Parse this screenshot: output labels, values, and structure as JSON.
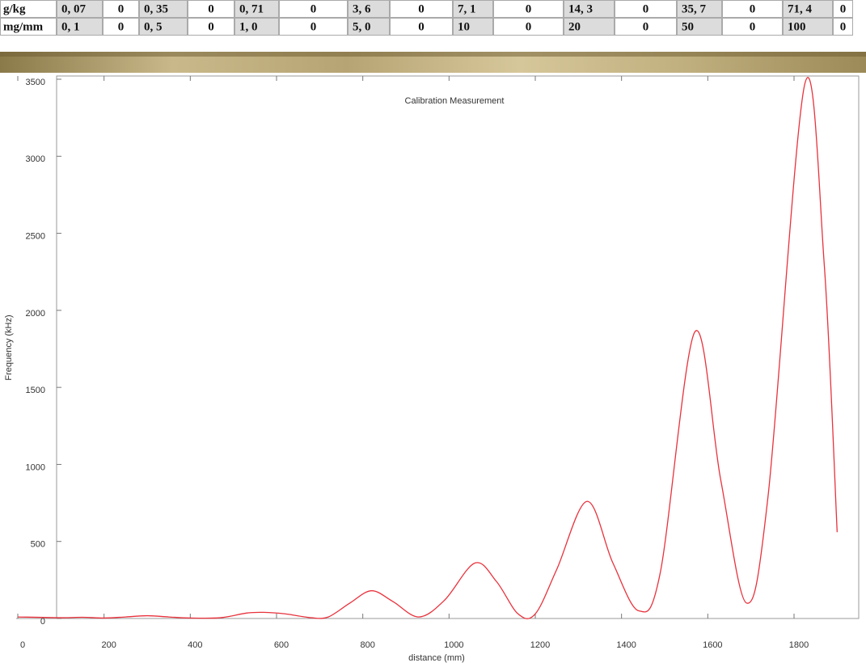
{
  "table": {
    "rows": [
      [
        "g/kg",
        "0, 07",
        "0",
        "0, 35",
        "0",
        "0, 71",
        "0",
        "3, 6",
        "0",
        "7, 1",
        "0",
        "14, 3",
        "0",
        "35, 7",
        "0",
        "71, 4",
        "0"
      ],
      [
        "mg/mm",
        "0, 1",
        "0",
        "0, 5",
        "0",
        "1, 0",
        "0",
        "5, 0",
        "0",
        "10",
        "0",
        "20",
        "0",
        "50",
        "0",
        "100",
        "0"
      ]
    ]
  },
  "chart_data": {
    "type": "line",
    "title": "Calibration Measurement",
    "x_label": "distance (mm)",
    "y_label": "Frequency (kHz)",
    "x": [
      0,
      100,
      150,
      200,
      250,
      300,
      350,
      400,
      470,
      530,
      570,
      620,
      680,
      720,
      770,
      820,
      870,
      930,
      990,
      1060,
      1110,
      1160,
      1200,
      1250,
      1320,
      1380,
      1440,
      1490,
      1570,
      1630,
      1690,
      1740,
      1825,
      1870,
      1900
    ],
    "values": [
      10,
      5,
      8,
      3,
      10,
      18,
      10,
      3,
      5,
      35,
      40,
      30,
      5,
      10,
      100,
      180,
      110,
      10,
      120,
      360,
      240,
      30,
      30,
      320,
      760,
      360,
      50,
      300,
      1860,
      900,
      100,
      800,
      3470,
      2300,
      560
    ],
    "color": "#e8323c",
    "xlim": [
      0,
      1950
    ],
    "xticks": [
      0,
      200,
      400,
      600,
      800,
      1000,
      1200,
      1400,
      1600,
      1800
    ],
    "ylim": [
      0,
      3500
    ],
    "yticks": [
      0,
      500,
      1000,
      1500,
      2000,
      2500,
      3000,
      3500
    ]
  }
}
